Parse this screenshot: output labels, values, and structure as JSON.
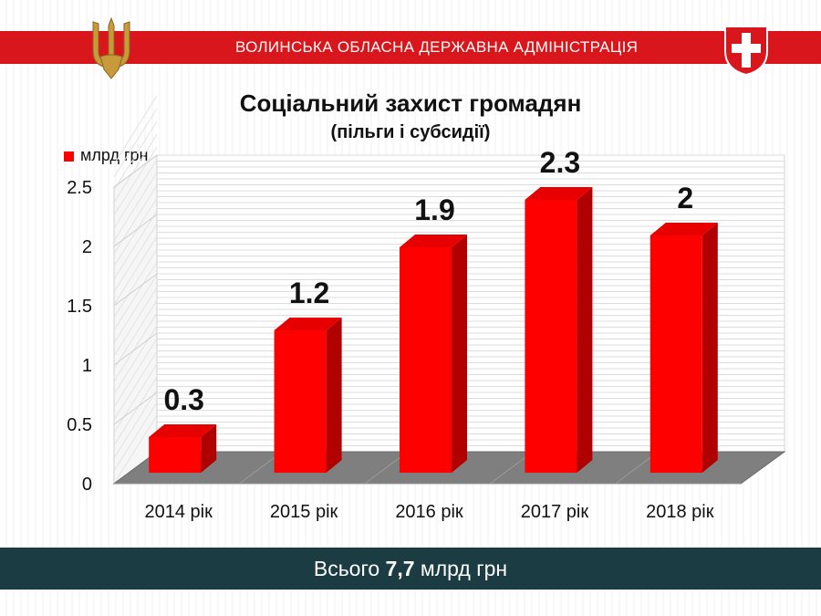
{
  "header": {
    "title": "ВОЛИНСЬКА ОБЛАСНА ДЕРЖАВНА АДМІНІСТРАЦІЯ",
    "trident_icon": "ukraine-trident-icon",
    "shield_icon": "volyn-coat-of-arms-icon",
    "accent_color": "#d8161b"
  },
  "chart_data": {
    "type": "bar",
    "title": "Соціальний захист громадян",
    "subtitle": "(пільги і субсидії)",
    "categories": [
      "2014 рік",
      "2015 рік",
      "2016 рік",
      "2017 рік",
      "2018 рік"
    ],
    "series": [
      {
        "name": "млрд грн",
        "values": [
          0.3,
          1.2,
          1.9,
          2.3,
          2
        ],
        "labels": [
          "0.3",
          "1.2",
          "1.9",
          "2.3",
          "2"
        ],
        "color": "#ff0000"
      }
    ],
    "yticks": [
      "0",
      "0.5",
      "1",
      "1.5",
      "2",
      "2.5"
    ],
    "ylim": [
      0,
      2.5
    ],
    "grid": true,
    "legend": "top-left",
    "style": "3d"
  },
  "footer": {
    "prefix": "Всього ",
    "value": "7,7",
    "suffix": " млрд грн",
    "color": "#1b3c42"
  }
}
